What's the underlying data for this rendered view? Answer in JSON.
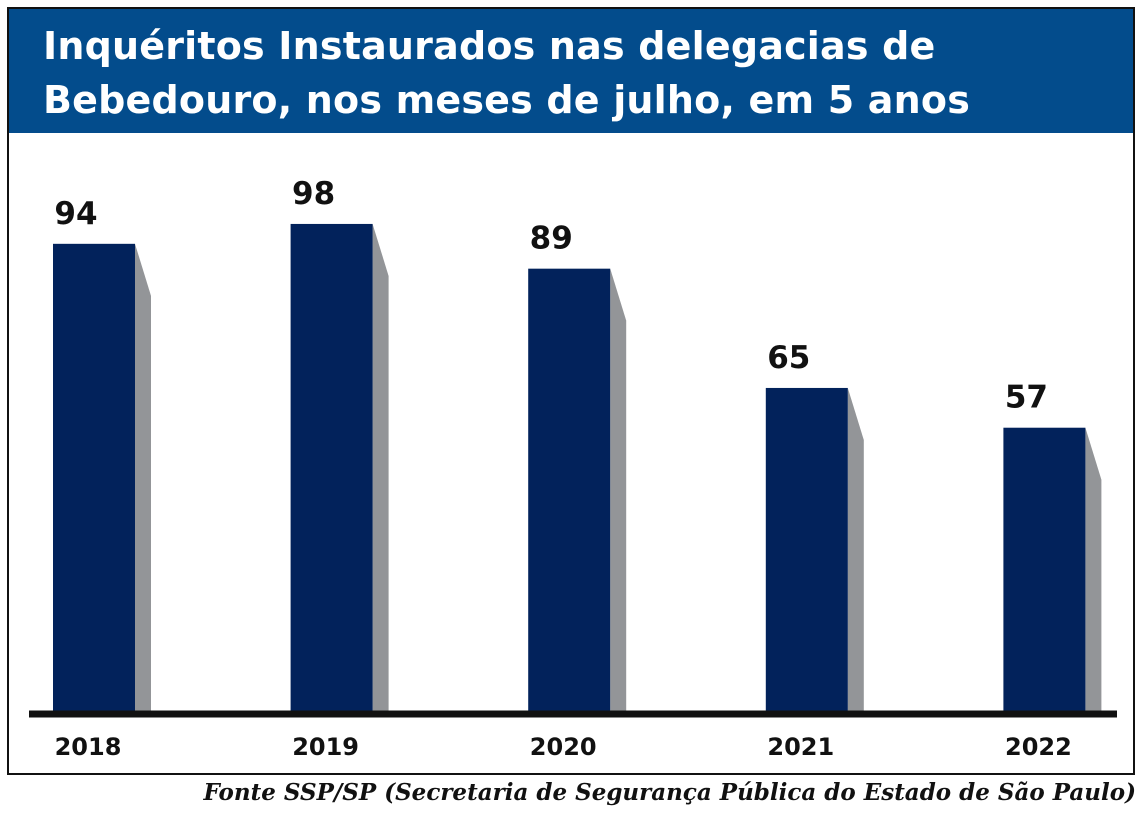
{
  "title": "Inquéritos Instaurados nas delegacias de Bebedouro, nos meses de julho, em 5 anos",
  "source": "Fonte SSP/SP (Secretaria de Segurança Pública do Estado de São Paulo)",
  "colors": {
    "header": "#034c8c",
    "bar": "#02225b",
    "bar_shadow": "#939598",
    "axis": "#111111"
  },
  "chart_data": {
    "type": "bar",
    "title": "Inquéritos Instaurados nas delegacias de Bebedouro, nos meses de julho, em 5 anos",
    "categories": [
      "2018",
      "2019",
      "2020",
      "2021",
      "2022"
    ],
    "values": [
      94,
      98,
      89,
      65,
      57
    ],
    "data_labels": [
      "94",
      "98",
      "89",
      "65",
      "57"
    ],
    "xlabel": "",
    "ylabel": "",
    "ylim": [
      0,
      100
    ],
    "grid": false,
    "legend": "none"
  }
}
